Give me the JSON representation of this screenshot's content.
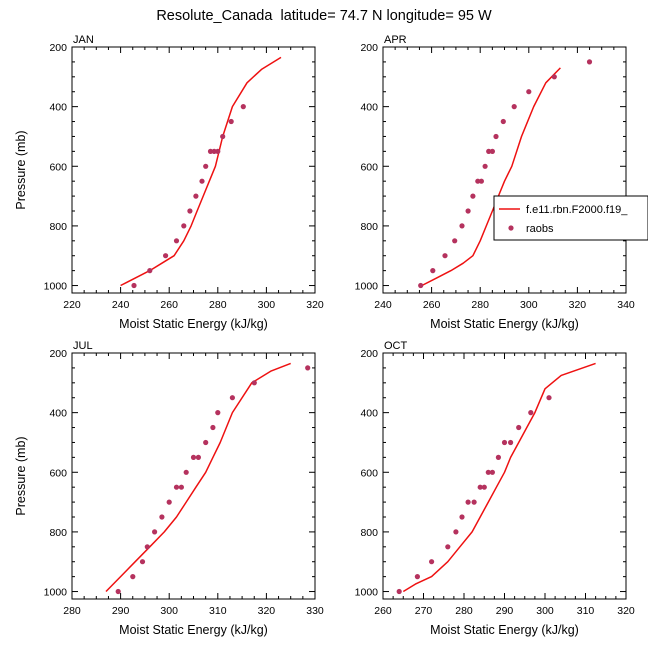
{
  "title": "Resolute_Canada  latitude= 74.7 N longitude= 95 W",
  "colors": {
    "model_line": "#ee1111",
    "obs_marker": "#b5325e",
    "axes": "#000000"
  },
  "chart_data": [
    {
      "type": "line",
      "panel": "JAN",
      "xlabel": "Moist Static Energy (kJ/kg)",
      "ylabel": "Pressure (mb)",
      "xlim": [
        220,
        320
      ],
      "ylim": [
        200,
        1025
      ],
      "y_inverted": true,
      "xticks": [
        220,
        240,
        260,
        280,
        300,
        320
      ],
      "yticks": [
        200,
        400,
        600,
        800,
        1000
      ],
      "legend": null,
      "series": [
        {
          "kind": "line",
          "x": [
            240,
            246,
            252,
            257,
            262,
            266,
            269,
            271.5,
            274,
            276.5,
            279,
            282,
            286,
            292,
            298,
            306
          ],
          "y": [
            1000,
            975,
            950,
            925,
            900,
            850,
            800,
            750,
            700,
            650,
            600,
            500,
            400,
            320,
            275,
            235
          ]
        },
        {
          "kind": "scatter",
          "x": [
            245.5,
            252,
            258.5,
            263,
            266,
            268.5,
            271,
            273.5,
            275,
            277,
            278.5,
            280,
            282,
            285.5,
            290.5
          ],
          "y": [
            1000,
            950,
            900,
            850,
            800,
            750,
            700,
            650,
            600,
            550,
            550,
            550,
            500,
            450,
            400
          ]
        }
      ]
    },
    {
      "type": "line",
      "panel": "APR",
      "xlabel": "Moist Static Energy (kJ/kg)",
      "ylabel": "",
      "xlim": [
        240,
        340
      ],
      "ylim": [
        200,
        1025
      ],
      "y_inverted": true,
      "xticks": [
        240,
        260,
        280,
        300,
        320,
        340
      ],
      "yticks": [
        200,
        400,
        600,
        800,
        1000
      ],
      "legend": {
        "placement": "right",
        "entries": [
          "f.e11.rbn.F2000.f19_",
          "raobs"
        ]
      },
      "series": [
        {
          "name": "f.e11.rbn.F2000.f19_",
          "kind": "line",
          "x": [
            256,
            262,
            268,
            273,
            277,
            280,
            282.5,
            285,
            287.5,
            290,
            293,
            297,
            302,
            307,
            313
          ],
          "y": [
            1000,
            975,
            950,
            925,
            900,
            850,
            800,
            750,
            700,
            650,
            600,
            500,
            400,
            320,
            270
          ]
        },
        {
          "name": "raobs",
          "kind": "scatter",
          "x": [
            255.5,
            260.5,
            265.5,
            269.5,
            272.5,
            275,
            277,
            279,
            280.5,
            282,
            283.5,
            285,
            286.5,
            289.5,
            294,
            300,
            310.5,
            325
          ],
          "y": [
            1000,
            950,
            900,
            850,
            800,
            750,
            700,
            650,
            650,
            600,
            550,
            550,
            500,
            450,
            400,
            350,
            300,
            250
          ]
        }
      ]
    },
    {
      "type": "line",
      "panel": "JUL",
      "xlabel": "Moist Static Energy (kJ/kg)",
      "ylabel": "Pressure (mb)",
      "xlim": [
        280,
        330
      ],
      "ylim": [
        200,
        1025
      ],
      "y_inverted": true,
      "xticks": [
        280,
        290,
        300,
        310,
        320,
        330
      ],
      "yticks": [
        200,
        400,
        600,
        800,
        1000
      ],
      "legend": null,
      "series": [
        {
          "kind": "line",
          "x": [
            287,
            290,
            293,
            296,
            299,
            301.5,
            303.5,
            305.5,
            307.5,
            309,
            310.5,
            313,
            317,
            321,
            325
          ],
          "y": [
            1000,
            950,
            900,
            850,
            800,
            750,
            700,
            650,
            600,
            550,
            500,
            400,
            300,
            260,
            235
          ]
        },
        {
          "kind": "scatter",
          "x": [
            289.5,
            292.5,
            294.5,
            295.5,
            297,
            298.5,
            300,
            301.5,
            302.5,
            303.5,
            305,
            306,
            307.5,
            309,
            310,
            313,
            317.5,
            328.5
          ],
          "y": [
            1000,
            950,
            900,
            850,
            800,
            750,
            700,
            650,
            650,
            600,
            550,
            550,
            500,
            450,
            400,
            350,
            300,
            250
          ]
        }
      ]
    },
    {
      "type": "line",
      "panel": "OCT",
      "xlabel": "Moist Static Energy (kJ/kg)",
      "ylabel": "",
      "xlim": [
        260,
        320
      ],
      "ylim": [
        200,
        1025
      ],
      "y_inverted": true,
      "xticks": [
        260,
        270,
        280,
        290,
        300,
        310,
        320
      ],
      "yticks": [
        200,
        400,
        600,
        800,
        1000
      ],
      "legend": null,
      "series": [
        {
          "kind": "line",
          "x": [
            265,
            268,
            272,
            276,
            279,
            282,
            284,
            286,
            288,
            290,
            291.5,
            293.5,
            295.5,
            297.5,
            300,
            304,
            312.5
          ],
          "y": [
            1000,
            975,
            950,
            900,
            850,
            800,
            750,
            700,
            650,
            600,
            550,
            500,
            450,
            400,
            320,
            275,
            235
          ]
        },
        {
          "kind": "scatter",
          "x": [
            264,
            268.5,
            272,
            276,
            278,
            279.5,
            281,
            282.5,
            284,
            285,
            286,
            287,
            288.5,
            290,
            291.5,
            293.5,
            296.5,
            301
          ],
          "y": [
            1000,
            950,
            900,
            850,
            800,
            750,
            700,
            700,
            650,
            650,
            600,
            600,
            550,
            500,
            500,
            450,
            400,
            350
          ]
        }
      ]
    }
  ]
}
